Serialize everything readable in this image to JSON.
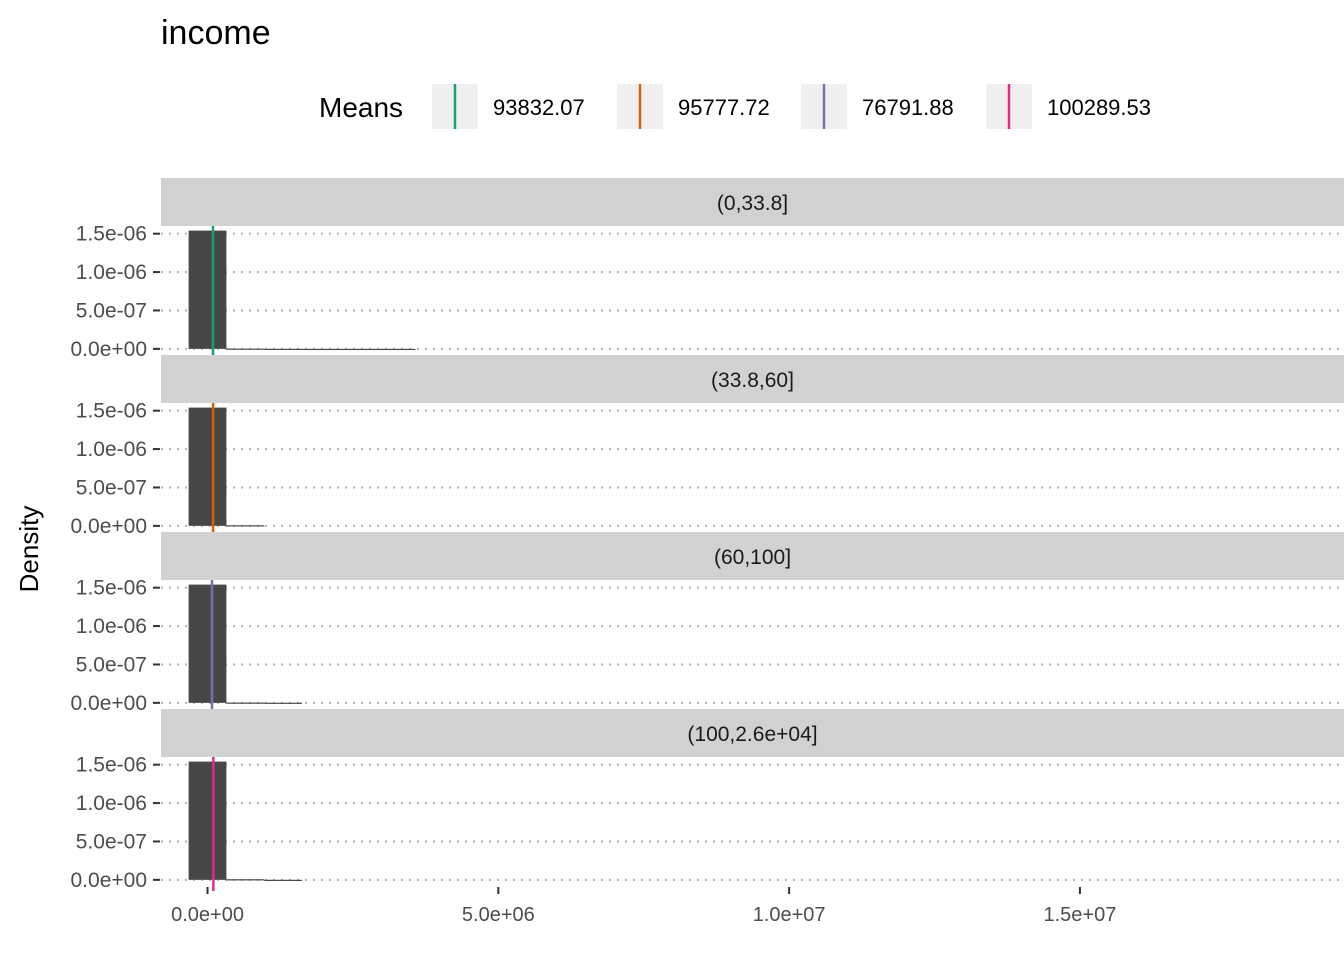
{
  "chart_data": {
    "type": "bar",
    "title": "income",
    "xlabel": "",
    "ylabel": "Density",
    "xlim": [
      -800000,
      19300000
    ],
    "ylim": [
      -8e-08,
      1.6e-06
    ],
    "x_ticks": [
      0,
      5000000,
      10000000,
      15000000
    ],
    "x_tick_labels": [
      "0.0e+00",
      "5.0e+06",
      "1.0e+07",
      "1.5e+07"
    ],
    "y_ticks": [
      0,
      5e-07,
      1e-06,
      1.5e-06
    ],
    "y_tick_labels": [
      "0.0e+00",
      "5.0e-07",
      "1.0e-06",
      "1.5e-06"
    ],
    "grid": "major, dotted",
    "bin_width": 650000,
    "legend": {
      "title": "Means",
      "position": "top",
      "entries": [
        {
          "label": "93832.07",
          "color": "#1B9E77"
        },
        {
          "label": "95777.72",
          "color": "#D95F02"
        },
        {
          "label": "76791.88",
          "color": "#7570B3"
        },
        {
          "label": "100289.53",
          "color": "#E7298A"
        }
      ]
    },
    "panels": [
      {
        "strip": "(0,33.8]",
        "mean": 93832.07,
        "mean_color": "#1B9E77",
        "bins": [
          {
            "x0": -325000,
            "x1": 325000,
            "density": 1.54e-06
          },
          {
            "x0": 325000,
            "x1": 975000,
            "density": 4e-09
          },
          {
            "x0": 975000,
            "x1": 1625000,
            "density": 1e-09
          },
          {
            "x0": 1625000,
            "x1": 2275000,
            "density": 4e-10
          },
          {
            "x0": 2275000,
            "x1": 2925000,
            "density": 2e-10
          },
          {
            "x0": 2925000,
            "x1": 3575000,
            "density": 2e-10
          }
        ]
      },
      {
        "strip": "(33.8,60]",
        "mean": 95777.72,
        "mean_color": "#D95F02",
        "bins": [
          {
            "x0": -325000,
            "x1": 325000,
            "density": 1.54e-06
          },
          {
            "x0": 325000,
            "x1": 975000,
            "density": 8e-09
          }
        ]
      },
      {
        "strip": "(60,100]",
        "mean": 76791.88,
        "mean_color": "#7570B3",
        "bins": [
          {
            "x0": -325000,
            "x1": 325000,
            "density": 1.54e-06
          },
          {
            "x0": 325000,
            "x1": 975000,
            "density": 4e-09
          },
          {
            "x0": 975000,
            "x1": 1625000,
            "density": 2e-09
          }
        ]
      },
      {
        "strip": "(100,2.6e+04]",
        "mean": 100289.53,
        "mean_color": "#E7298A",
        "bins": [
          {
            "x0": -325000,
            "x1": 325000,
            "density": 1.54e-06
          },
          {
            "x0": 325000,
            "x1": 975000,
            "density": 8e-09
          },
          {
            "x0": 975000,
            "x1": 1625000,
            "density": 1e-09
          }
        ]
      }
    ]
  }
}
